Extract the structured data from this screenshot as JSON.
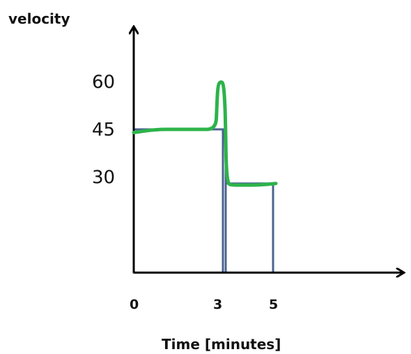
{
  "chart_data": {
    "type": "line",
    "title": "",
    "xlabel": "Time [minutes]",
    "ylabel": "velocity",
    "x_ticks": [
      0,
      3,
      5
    ],
    "y_ticks": [
      30,
      45,
      60
    ],
    "xlim": [
      0,
      9.5
    ],
    "ylim": [
      0,
      70
    ],
    "grid": false,
    "legend": "none",
    "colors": {
      "curve": "#2db34a",
      "rectangles": "#4b6490",
      "axes": "#000000"
    },
    "series": [
      {
        "x": [
          0,
          0.8,
          1.5,
          2.3,
          2.95,
          2.98,
          3.02,
          3.12,
          3.22,
          3.28,
          3.3,
          3.32,
          3.38,
          3.5,
          3.9,
          4.5,
          5.1
        ],
        "y": [
          44,
          45,
          45,
          45,
          45,
          52,
          59,
          60,
          59.5,
          52,
          42,
          33,
          28,
          27.5,
          27.5,
          27.5,
          28
        ]
      }
    ],
    "rectangles": [
      {
        "x0": 0,
        "x1": 3.2,
        "height": 45
      },
      {
        "x0": 3.3,
        "x1": 5,
        "height": 28
      },
      {
        "x0": 3.2,
        "x1": 3.3,
        "height": 45
      }
    ]
  }
}
